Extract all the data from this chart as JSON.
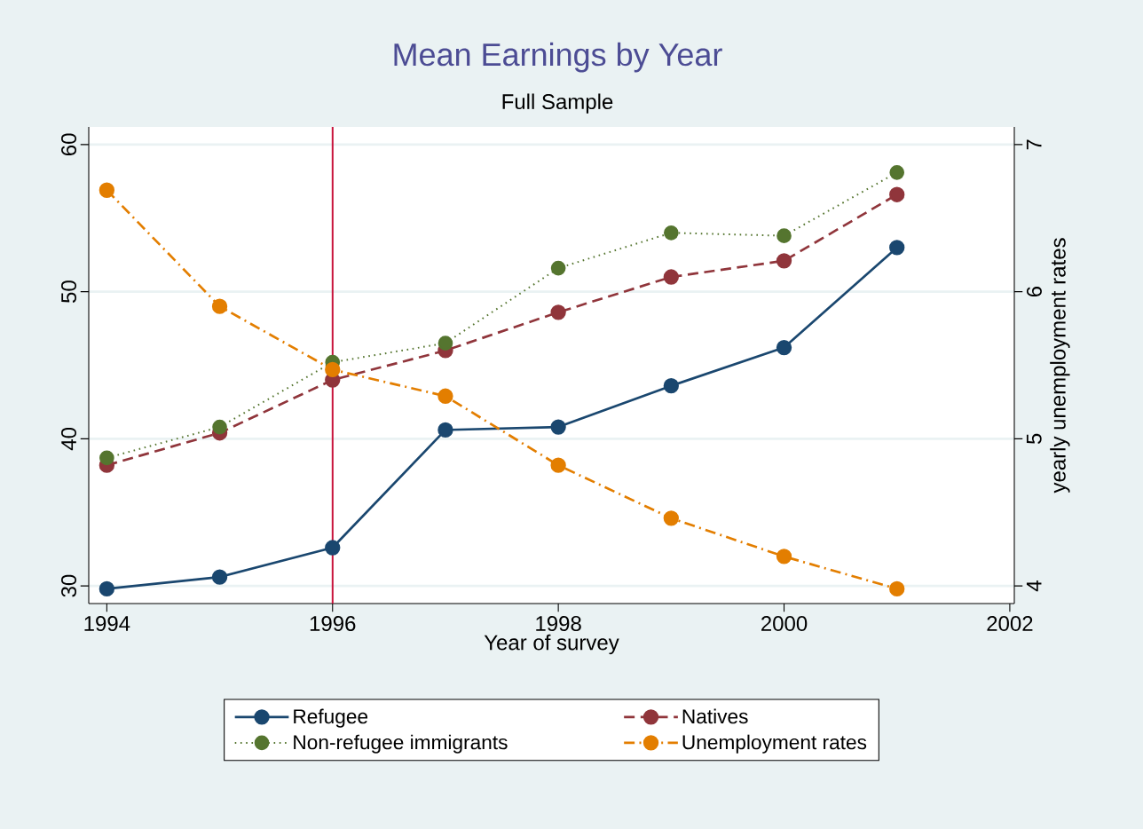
{
  "chart_data": {
    "type": "line",
    "title": "Mean Earnings by Year",
    "subtitle": "Full Sample",
    "xlabel": "Year of survey",
    "y2label": "yearly unemployment rates",
    "x": [
      1994,
      1995,
      1996,
      1997,
      1998,
      1999,
      2000,
      2001
    ],
    "series": [
      {
        "name": "Refugee",
        "color": "#1a476f",
        "line_style": "solid",
        "values": [
          29.8,
          30.6,
          32.6,
          40.6,
          40.8,
          43.6,
          46.2,
          53.0
        ]
      },
      {
        "name": "Natives",
        "color": "#90353b",
        "line_style": "dashed",
        "values": [
          38.2,
          40.4,
          44.0,
          46.0,
          48.6,
          51.0,
          52.1,
          56.6
        ]
      },
      {
        "name": "Non-refugee immigrants",
        "color": "#55752f",
        "line_style": "dotted",
        "values": [
          38.7,
          40.8,
          45.2,
          46.5,
          51.6,
          54.0,
          53.8,
          58.1
        ]
      },
      {
        "name": "Unemployment rates",
        "color": "#e37e00",
        "line_style": "dashdot",
        "axis": "y2",
        "values": [
          6.69,
          5.9,
          5.47,
          5.29,
          4.82,
          4.46,
          4.2,
          3.98
        ]
      }
    ],
    "xlim": [
      1993.84,
      2002.04
    ],
    "ylim": [
      28.8,
      61.2
    ],
    "y2lim": [
      3.88,
      7.12
    ],
    "xticks": [
      1994,
      1996,
      1998,
      2000,
      2002
    ],
    "yticks": [
      30,
      40,
      50,
      60
    ],
    "y2ticks": [
      4,
      5,
      6,
      7
    ],
    "ref_lines": [
      {
        "axis": "x",
        "value": 1996,
        "color": "#c8143c"
      }
    ],
    "grid": "y",
    "legend": "bottom",
    "marker": "circle"
  }
}
